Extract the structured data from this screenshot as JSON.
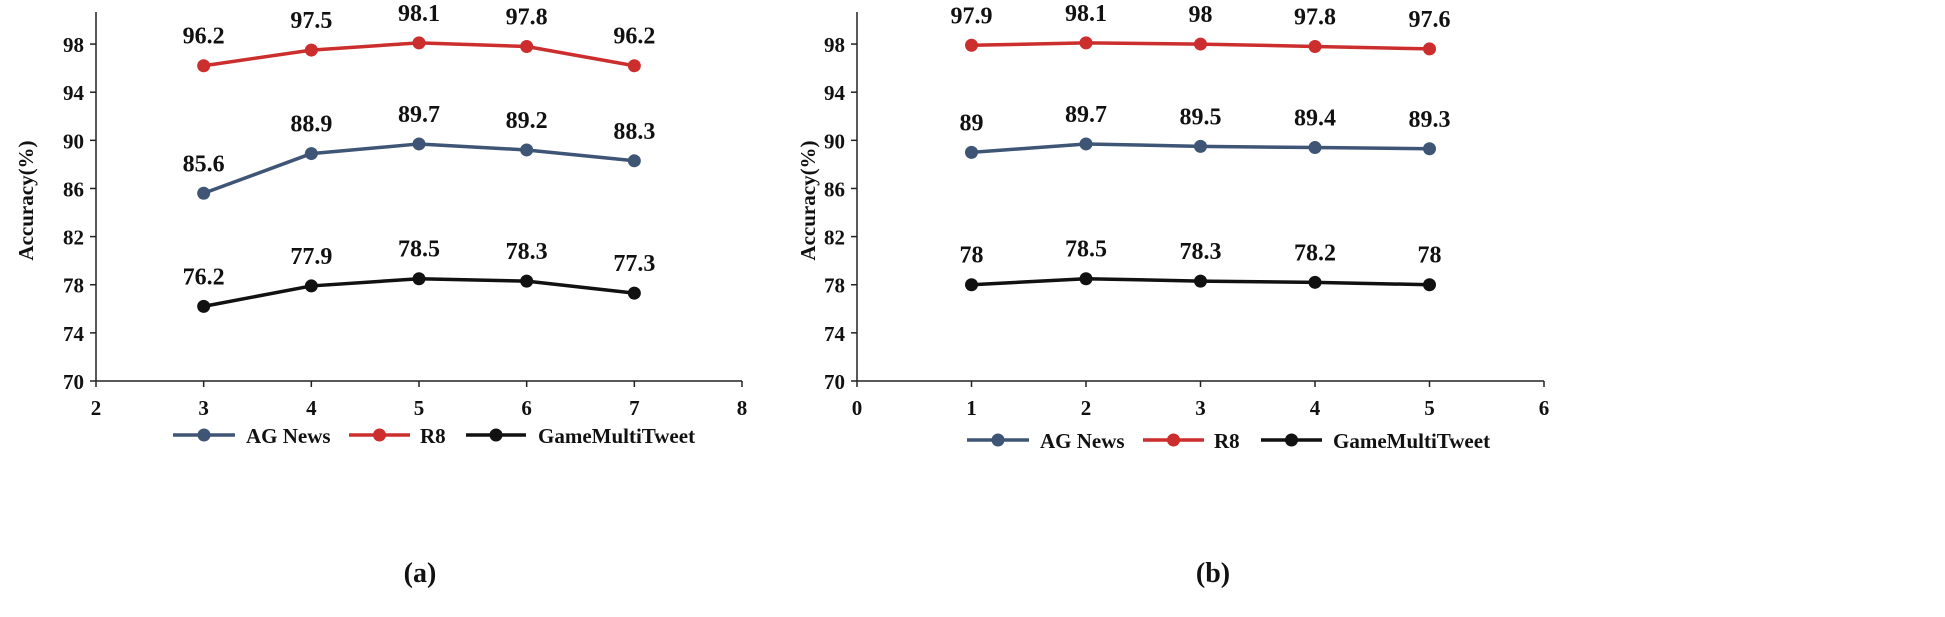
{
  "colors": {
    "ag_news": "#3e5575",
    "r8": "#cc2e2e",
    "game": "#111111",
    "axis": "#222222",
    "text": "#111111"
  },
  "chart_data": [
    {
      "type": "line",
      "caption": "(a)",
      "ylabel": "Accuracy(%)",
      "xlim": [
        2,
        8
      ],
      "ylim": [
        70,
        100
      ],
      "xticks": [
        2,
        3,
        4,
        5,
        6,
        7,
        8
      ],
      "yticks": [
        70,
        74,
        78,
        82,
        86,
        90,
        94,
        98
      ],
      "x": [
        3,
        4,
        5,
        6,
        7
      ],
      "series": [
        {
          "name": "AG News",
          "color": "#3e5575",
          "values": [
            85.6,
            88.9,
            89.7,
            89.2,
            88.3
          ],
          "labels": [
            "85.6",
            "88.9",
            "89.7",
            "89.2",
            "88.3"
          ]
        },
        {
          "name": "R8",
          "color": "#cc2e2e",
          "values": [
            96.2,
            97.5,
            98.1,
            97.8,
            96.2
          ],
          "labels": [
            "96.2",
            "97.5",
            "98.1",
            "97.8",
            "96.2"
          ]
        },
        {
          "name": "GameMultiTweet",
          "color": "#111111",
          "values": [
            76.2,
            77.9,
            78.5,
            78.3,
            77.3
          ],
          "labels": [
            "76.2",
            "77.9",
            "78.5",
            "78.3",
            "77.3"
          ]
        }
      ],
      "legend": "bottom"
    },
    {
      "type": "line",
      "caption": "(b)",
      "ylabel": "Accuracy(%)",
      "xlim": [
        0,
        6
      ],
      "ylim": [
        70,
        100
      ],
      "xticks": [
        0,
        1,
        2,
        3,
        4,
        5,
        6
      ],
      "yticks": [
        70,
        74,
        78,
        82,
        86,
        90,
        94,
        98
      ],
      "x": [
        1,
        2,
        3,
        4,
        5
      ],
      "series": [
        {
          "name": "AG News",
          "color": "#3e5575",
          "values": [
            89,
            89.7,
            89.5,
            89.4,
            89.3
          ],
          "labels": [
            "89",
            "89.7",
            "89.5",
            "89.4",
            "89.3"
          ]
        },
        {
          "name": "R8",
          "color": "#cc2e2e",
          "values": [
            97.9,
            98.1,
            98,
            97.8,
            97.6
          ],
          "labels": [
            "97.9",
            "98.1",
            "98",
            "97.8",
            "97.6"
          ]
        },
        {
          "name": "GameMultiTweet",
          "color": "#111111",
          "values": [
            78,
            78.5,
            78.3,
            78.2,
            78
          ],
          "labels": [
            "78",
            "78.5",
            "78.3",
            "78.2",
            "78"
          ]
        }
      ],
      "legend": "bottom"
    }
  ]
}
